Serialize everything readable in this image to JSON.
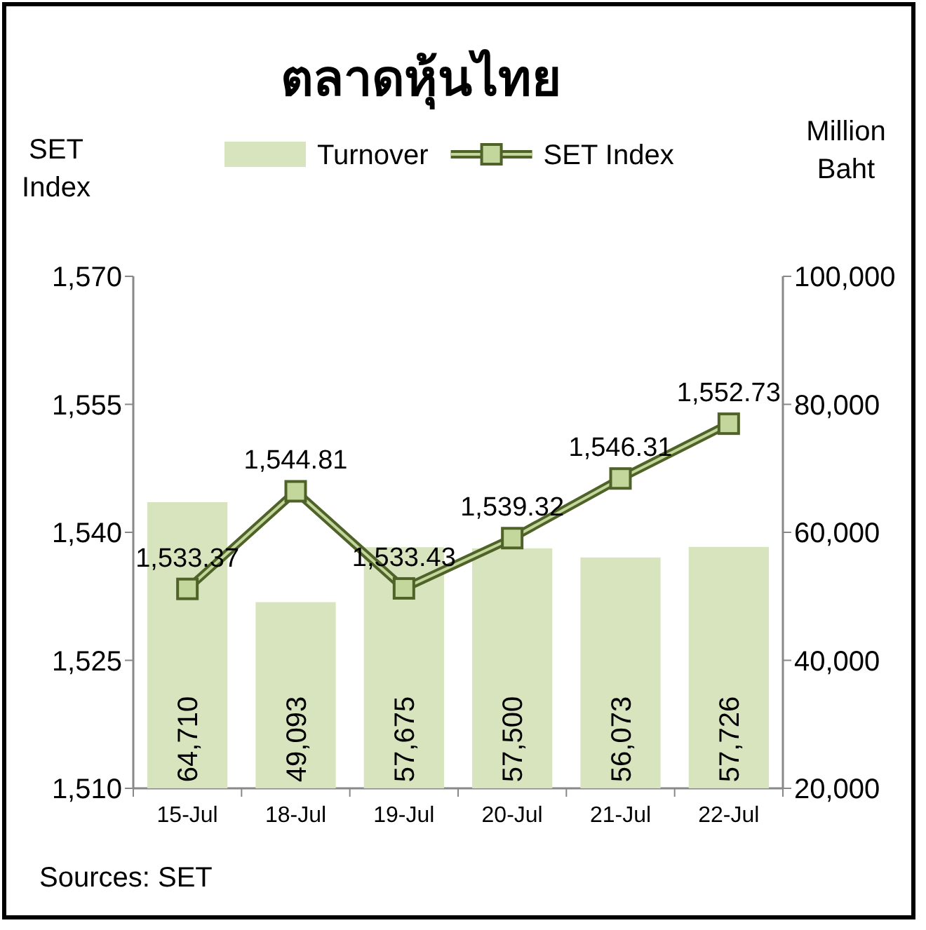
{
  "chart_data": {
    "type": "bar",
    "title": "ตลาดหุ้นไทย",
    "ylabel": "SET Index",
    "y2label": "Million Baht",
    "categories": [
      "15-Jul",
      "18-Jul",
      "19-Jul",
      "20-Jul",
      "21-Jul",
      "22-Jul"
    ],
    "series": [
      {
        "name": "Turnover",
        "axis": "y2",
        "color": "#d7e4bd",
        "values": [
          64710,
          49093,
          57675,
          57500,
          56073,
          57726
        ],
        "value_labels": [
          "64,710",
          "49,093",
          "57,675",
          "57,500",
          "56,073",
          "57,726"
        ]
      },
      {
        "name": "SET Index",
        "type": "line",
        "axis": "y",
        "color": "#4f6228",
        "values": [
          1533.37,
          1544.81,
          1533.43,
          1539.32,
          1546.31,
          1552.73
        ],
        "value_labels": [
          "1,533.37",
          "1,544.81",
          "1,533.43",
          "1,539.32",
          "1,546.31",
          "1,552.73"
        ]
      }
    ],
    "ylim": [
      1510,
      1570
    ],
    "yticks": [
      {
        "value": 1510,
        "label": "1,510"
      },
      {
        "value": 1525,
        "label": "1,525"
      },
      {
        "value": 1540,
        "label": "1,540"
      },
      {
        "value": 1555,
        "label": "1,555"
      },
      {
        "value": 1570,
        "label": "1,570"
      }
    ],
    "y2lim": [
      20000,
      100000
    ],
    "y2ticks": [
      {
        "value": 20000,
        "label": "20,000"
      },
      {
        "value": 40000,
        "label": "40,000"
      },
      {
        "value": 60000,
        "label": "60,000"
      },
      {
        "value": 80000,
        "label": "80,000"
      },
      {
        "value": 100000,
        "label": "100,000"
      }
    ],
    "legend": "top",
    "marker": "square",
    "line_style": "solid",
    "grid": false,
    "annotations": [
      "Sources: SET"
    ]
  }
}
